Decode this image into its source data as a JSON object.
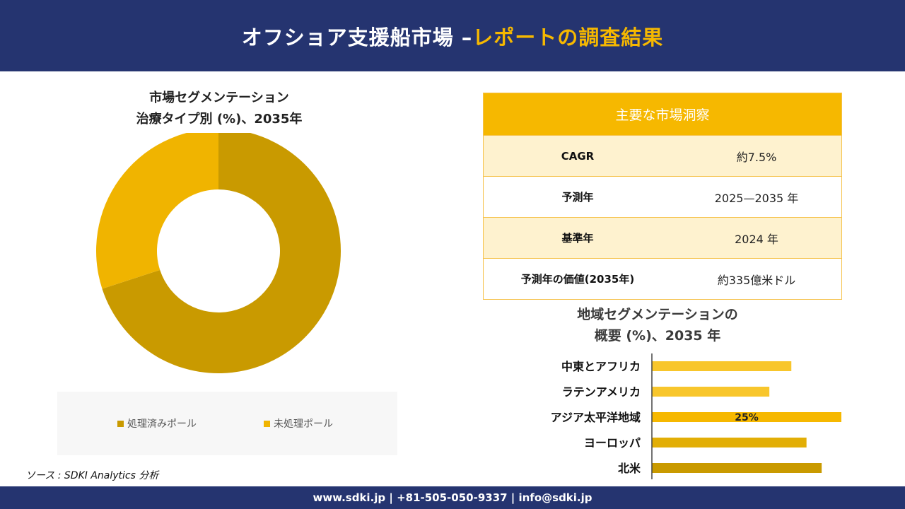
{
  "header": {
    "title_main": "オフショア支援船市場 –",
    "title_accent": "レポートの調査結果"
  },
  "donut_section": {
    "title_line1": "市場セグメンテーション",
    "title_line2": "治療タイプ別 (%)、2035年"
  },
  "kpi": {
    "heading": "主要な市場洞察",
    "rows": [
      {
        "label": "CAGR",
        "value": "約7.5%"
      },
      {
        "label": "予測年",
        "value": "2025—2035 年"
      },
      {
        "label": "基準年",
        "value": "2024 年"
      },
      {
        "label": "予測年の価値(2035年)",
        "value": "約335億米ドル"
      }
    ]
  },
  "region_section": {
    "title_line1": "地域セグメンテーションの",
    "title_line2": "概要 (%)、2035 年"
  },
  "source": "ソース : SDKI Analytics 分析",
  "footer": {
    "contact": "www.sdki.jp | +81-505-050-9337 | info@sdki.jp"
  },
  "colors": {
    "navy": "#253470",
    "accent": "#F6B800",
    "donut_treated": "#C99A00",
    "donut_untreated": "#F0B400"
  },
  "chart_data": [
    {
      "type": "pie",
      "variant": "donut",
      "categories": [
        "処理済みポール",
        "未処理ポール"
      ],
      "values": [
        70,
        30
      ],
      "colors": [
        "#C99A00",
        "#F0B400"
      ],
      "legend": "bottom"
    },
    {
      "type": "bar",
      "orientation": "horizontal",
      "categories": [
        "中東とアフリカ",
        "ラテンアメリカ",
        "アジア太平洋地域",
        "ヨーロッパ",
        "北米"
      ],
      "values": [
        18.4,
        15.5,
        25,
        20.4,
        22.4
      ],
      "data_labels": [
        "",
        "",
        "25%",
        "",
        ""
      ],
      "colors": [
        "#F8C62C",
        "#F8C62C",
        "#F6B800",
        "#E2AE06",
        "#C99A00"
      ],
      "xlim": [
        0,
        25
      ],
      "grid": false
    }
  ]
}
